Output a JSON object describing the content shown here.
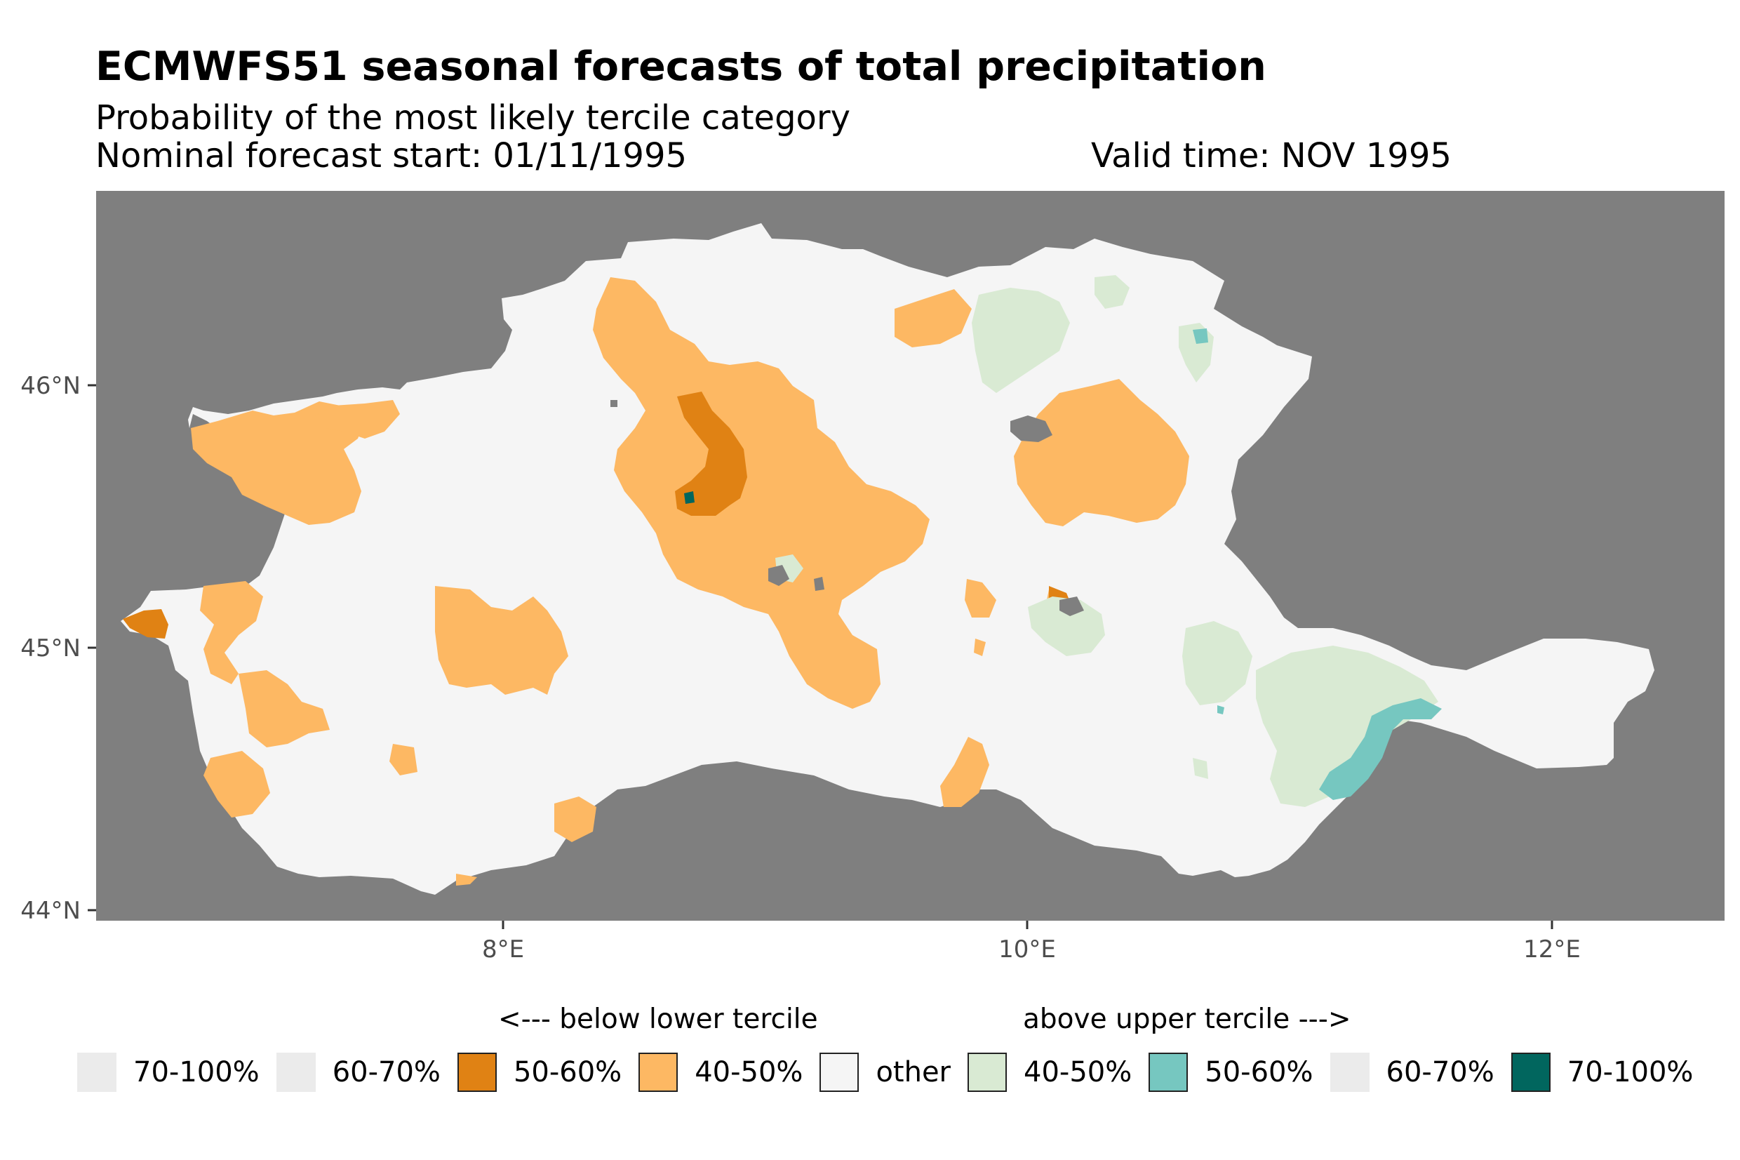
{
  "title": "ECMWFS51 seasonal forecasts of total precipitation",
  "subtitle": "Probability of the most likely tercile category",
  "forecast_start": "Nominal forecast start: 01/11/1995",
  "valid_time": "Valid time: NOV 1995",
  "axes": {
    "x_ticks": [
      "8°E",
      "10°E",
      "12°E"
    ],
    "y_ticks": [
      "46°N",
      "45°N",
      "44°N"
    ],
    "x_range_deg": [
      6.45,
      12.65
    ],
    "y_range_deg": [
      43.95,
      46.75
    ]
  },
  "colors": {
    "background_na": "#7f7f7f",
    "other": "#f5f5f5",
    "below_40_50": "#fdb863",
    "below_50_60": "#e08214",
    "above_40_50": "#d9ead3",
    "above_50_60": "#76c7c0",
    "above_70_100": "#01665e",
    "empty_class": "#ebebeb"
  },
  "legend": {
    "below_header": "<--- below lower tercile",
    "above_header": "above upper tercile --->",
    "items": [
      {
        "label": "70-100%",
        "color": "#ebebeb",
        "border": false
      },
      {
        "label": "60-70%",
        "color": "#ebebeb",
        "border": false
      },
      {
        "label": "50-60%",
        "color": "#e08214",
        "border": true
      },
      {
        "label": "40-50%",
        "color": "#fdb863",
        "border": true
      },
      {
        "label": "other",
        "color": "#f5f5f5",
        "border": true
      },
      {
        "label": "40-50%",
        "color": "#d9ead3",
        "border": true
      },
      {
        "label": "50-60%",
        "color": "#76c7c0",
        "border": true
      },
      {
        "label": "60-70%",
        "color": "#ebebeb",
        "border": false
      },
      {
        "label": "70-100%",
        "color": "#01665e",
        "border": true
      }
    ]
  }
}
